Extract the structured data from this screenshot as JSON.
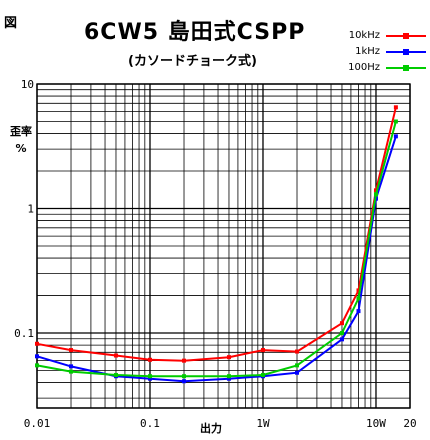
{
  "figure_label": "図",
  "chart_data": {
    "type": "line",
    "title": "6CW5 島田式CSPP",
    "subtitle": "(カソードチョーク式)",
    "xlabel": "出力",
    "ylabel": [
      "歪率",
      "%"
    ],
    "xscale": "log",
    "yscale": "log",
    "xlim": [
      0.01,
      20
    ],
    "ylim": [
      0.025,
      10
    ],
    "xticks": [
      {
        "value": 0.01,
        "label": "0.01"
      },
      {
        "value": 0.1,
        "label": "0.1"
      },
      {
        "value": 1,
        "label": "1W"
      },
      {
        "value": 10,
        "label": "10W"
      },
      {
        "value": 20,
        "label": "20"
      }
    ],
    "yticks": [
      {
        "value": 10,
        "label": "10"
      },
      {
        "value": 1,
        "label": "1"
      },
      {
        "value": 0.1,
        "label": "0.1"
      }
    ],
    "grid": true,
    "legend_position": "top-right",
    "series": [
      {
        "name": "10kHz",
        "color": "#ff0000",
        "x": [
          0.01,
          0.02,
          0.05,
          0.1,
          0.2,
          0.5,
          1,
          2,
          5,
          7,
          10,
          15
        ],
        "y": [
          0.082,
          0.073,
          0.066,
          0.061,
          0.06,
          0.064,
          0.073,
          0.071,
          0.12,
          0.22,
          1.4,
          6.5
        ]
      },
      {
        "name": "1kHz",
        "color": "#0000ff",
        "x": [
          0.01,
          0.02,
          0.05,
          0.1,
          0.2,
          0.5,
          1,
          2,
          5,
          7,
          10,
          15
        ],
        "y": [
          0.065,
          0.054,
          0.045,
          0.043,
          0.041,
          0.043,
          0.045,
          0.048,
          0.089,
          0.15,
          1.2,
          3.8
        ]
      },
      {
        "name": "100Hz",
        "color": "#00cc00",
        "x": [
          0.01,
          0.02,
          0.05,
          0.1,
          0.2,
          0.5,
          1,
          2,
          5,
          7,
          10,
          15
        ],
        "y": [
          0.055,
          0.049,
          0.046,
          0.045,
          0.045,
          0.045,
          0.046,
          0.055,
          0.1,
          0.19,
          1.3,
          5.0
        ]
      }
    ]
  }
}
